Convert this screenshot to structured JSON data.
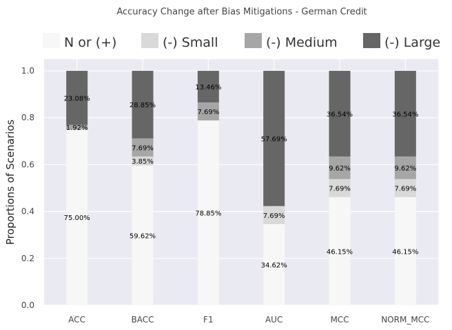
{
  "chart_data": {
    "type": "bar",
    "stacked": true,
    "title": "Accuracy Change after Bias Mitigations - German Credit",
    "xlabel": "",
    "ylabel": "Proportions of Scenarios",
    "ylim": [
      0,
      1.05
    ],
    "yticks": [
      "0.0",
      "0.2",
      "0.4",
      "0.6",
      "0.8",
      "1.0"
    ],
    "grid": true,
    "legend_position": "top",
    "categories": [
      "ACC",
      "BACC",
      "F1",
      "AUC",
      "MCC",
      "NORM_MCC"
    ],
    "series": [
      {
        "name": "N or (+)",
        "color": "#f7f7f7",
        "values": [
          0.75,
          0.5962,
          0.7885,
          0.3462,
          0.4615,
          0.4615
        ],
        "labels": [
          "75.00%",
          "59.62%",
          "78.85%",
          "34.62%",
          "46.15%",
          "46.15%"
        ]
      },
      {
        "name": "(-) Small",
        "color": "#d9d9d9",
        "values": [
          0.0,
          0.0385,
          0.0,
          0.0769,
          0.0769,
          0.0769
        ],
        "labels": [
          "",
          "3.85%",
          "",
          "7.69%",
          "7.69%",
          "7.69%"
        ]
      },
      {
        "name": "(-) Medium",
        "color": "#a6a6a6",
        "values": [
          0.0192,
          0.0769,
          0.0769,
          0.0,
          0.0962,
          0.0962
        ],
        "labels": [
          "1.92%",
          "7.69%",
          "7.69%",
          "",
          "9.62%",
          "9.62%"
        ]
      },
      {
        "name": "(-) Large",
        "color": "#666666",
        "values": [
          0.2308,
          0.2885,
          0.1346,
          0.5769,
          0.3654,
          0.3654
        ],
        "labels": [
          "23.08%",
          "28.85%",
          "13.46%",
          "57.69%",
          "36.54%",
          "36.54%"
        ]
      }
    ]
  }
}
